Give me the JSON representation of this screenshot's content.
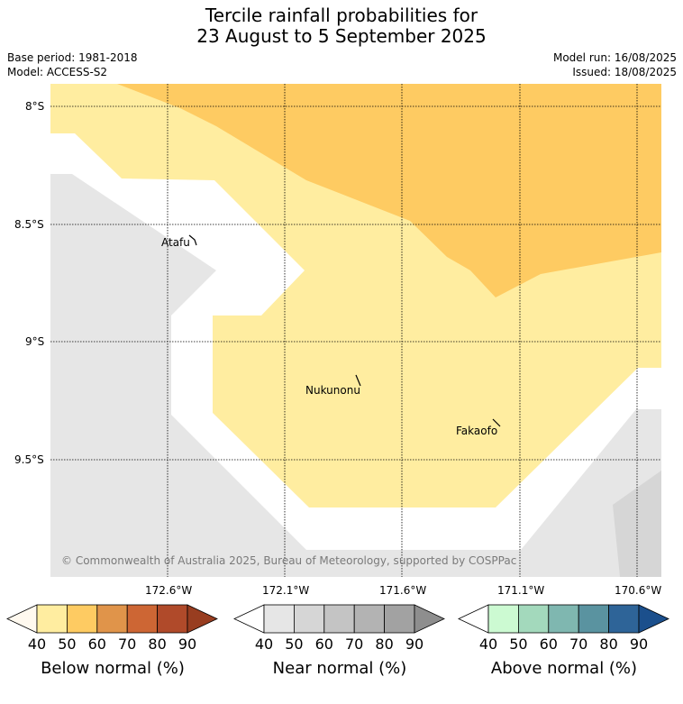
{
  "title_line1": "Tercile rainfall probabilities for",
  "title_line2": "23 August to 5 September 2025",
  "base_period": "Base period: 1981-2018",
  "model": "Model: ACCESS-S2",
  "model_run": "Model run: 16/08/2025",
  "issued": "Issued: 18/08/2025",
  "latitude_labels": [
    "8°S",
    "8.5°S",
    "9°S",
    "9.5°S"
  ],
  "longitude_labels": [
    "172.6°W",
    "172.1°W",
    "171.6°W",
    "171.1°W",
    "170.6°W"
  ],
  "places": [
    "Atafu",
    "Nukunonu",
    "Fakaofo"
  ],
  "copyright": "© Commonwealth of Australia 2025, Bureau of Meteorology, supported by COSPPac",
  "colorbars": [
    {
      "label": "Below normal (%)",
      "ticks": [
        "40",
        "50",
        "60",
        "70",
        "80",
        "90"
      ],
      "colors": [
        "#fff9ef",
        "#ffeda0",
        "#fecb62",
        "#e0944a",
        "#cd6634",
        "#b04a2a",
        "#983d20"
      ]
    },
    {
      "label": "Near normal (%)",
      "ticks": [
        "40",
        "50",
        "60",
        "70",
        "80",
        "90"
      ],
      "colors": [
        "#ffffff",
        "#e6e6e6",
        "#d6d6d6",
        "#c4c4c4",
        "#b3b3b3",
        "#a2a2a2",
        "#8e8e8e"
      ]
    },
    {
      "label": "Above normal (%)",
      "ticks": [
        "40",
        "50",
        "60",
        "70",
        "80",
        "90"
      ],
      "colors": [
        "#ffffff",
        "#ccfad2",
        "#a3d9bc",
        "#7fb7b0",
        "#5a93a0",
        "#2e6498",
        "#1b4f8c"
      ]
    }
  ],
  "colors": {
    "no_dominant": "#e6e6e6",
    "near_normal_50": "#d6d6d6",
    "below_40_50": "#ffeda0",
    "below_50_60": "#fecb62",
    "coast_buffer": "#ffffff"
  }
}
